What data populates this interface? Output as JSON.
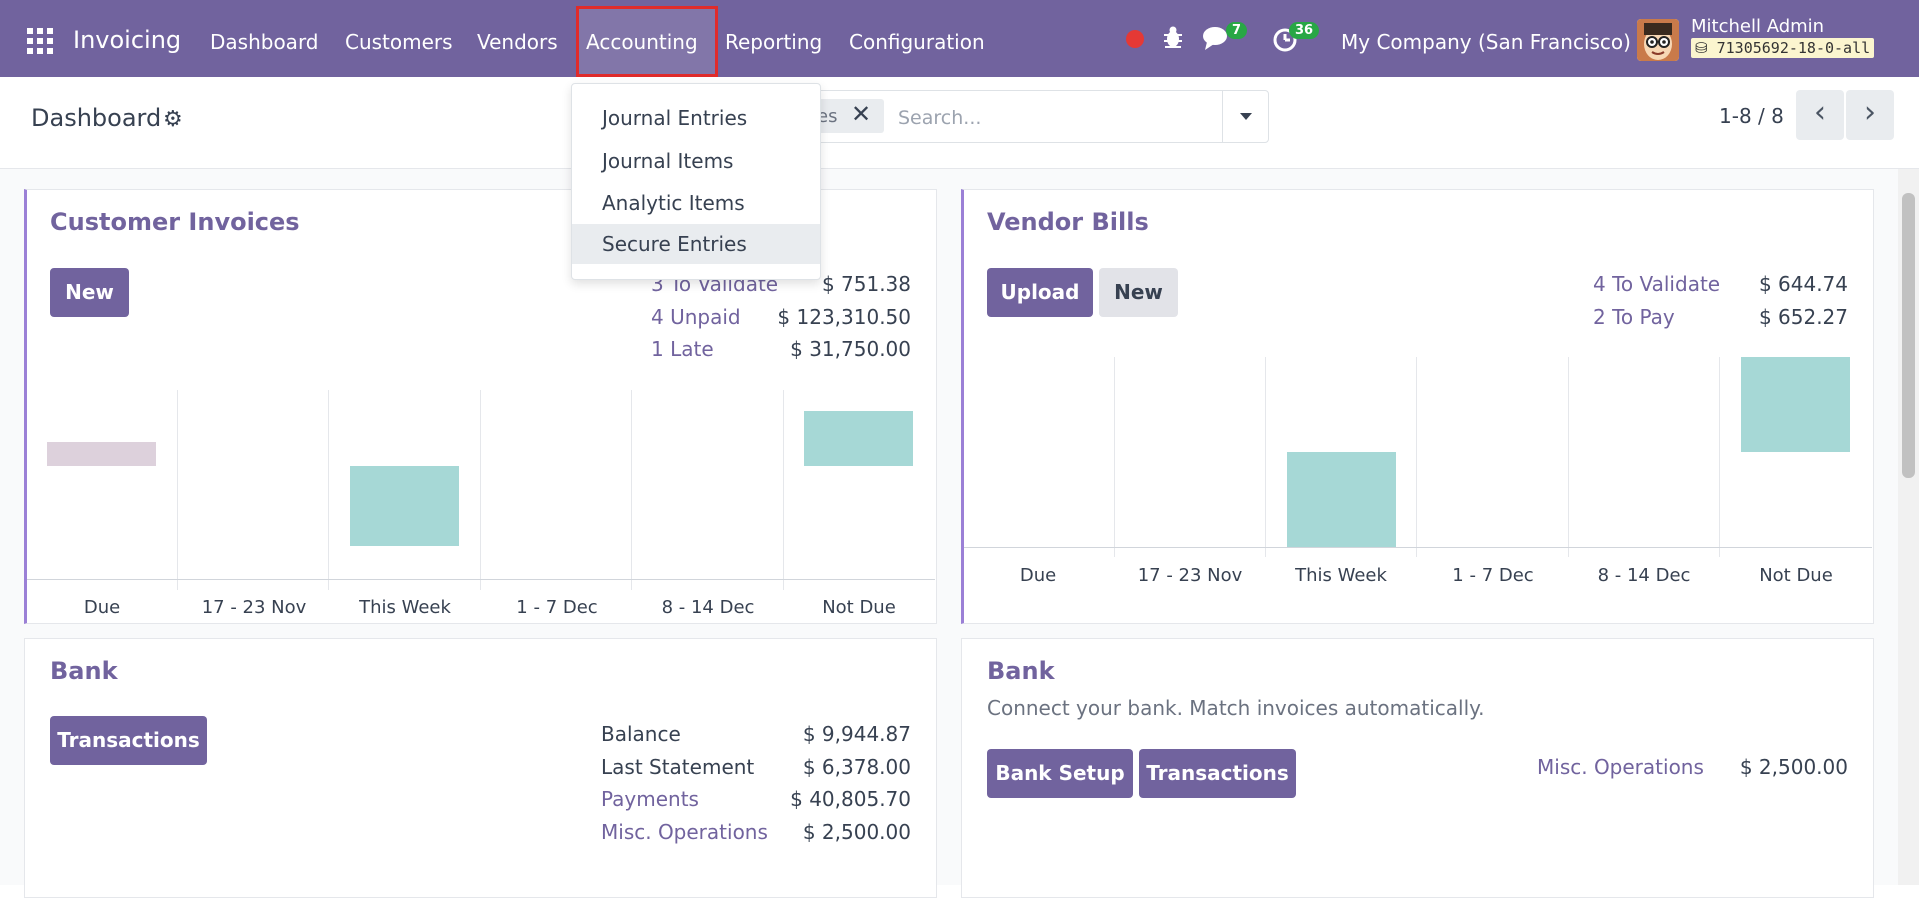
{
  "navbar": {
    "brand": "Invoicing",
    "menus": [
      "Dashboard",
      "Customers",
      "Vendors",
      "Accounting",
      "Reporting",
      "Configuration"
    ],
    "chat_badge": "7",
    "activity_badge": "36",
    "company": "My Company (San Francisco)",
    "user_name": "Mitchell Admin",
    "db_name": "71305692-18-0-all"
  },
  "control": {
    "title": "Dashboard",
    "facet_label": "es",
    "search_placeholder": "Search...",
    "pager": "1-8 / 8"
  },
  "dropdown": {
    "items": [
      "Journal Entries",
      "Journal Items",
      "Analytic Items",
      "Secure Entries"
    ]
  },
  "customer_invoices": {
    "title": "Customer Invoices",
    "new_label": "New",
    "stats": [
      {
        "label": "3 To Validate",
        "value": "$ 751.38"
      },
      {
        "label": "4 Unpaid",
        "value": "$ 123,310.50"
      },
      {
        "label": "1 Late",
        "value": "$ 31,750.00"
      }
    ],
    "chart_labels": [
      "Due",
      "17 - 23 Nov",
      "This Week",
      "1 - 7 Dec",
      "8 - 14 Dec",
      "Not Due"
    ]
  },
  "vendor_bills": {
    "title": "Vendor Bills",
    "upload_label": "Upload",
    "new_label": "New",
    "stats": [
      {
        "label": "4 To Validate",
        "value": "$ 644.74"
      },
      {
        "label": "2 To Pay",
        "value": "$ 652.27"
      }
    ],
    "chart_labels": [
      "Due",
      "17 - 23 Nov",
      "This Week",
      "1 - 7 Dec",
      "8 - 14 Dec",
      "Not Due"
    ]
  },
  "bank1": {
    "title": "Bank",
    "transactions_label": "Transactions",
    "stats": [
      {
        "label": "Balance",
        "value": "$ 9,944.87"
      },
      {
        "label": "Last Statement",
        "value": "$ 6,378.00"
      },
      {
        "label": "Payments",
        "value": "$ 40,805.70"
      },
      {
        "label": "Misc. Operations",
        "value": "$ 2,500.00"
      }
    ]
  },
  "bank2": {
    "title": "Bank",
    "subtitle": "Connect your bank. Match invoices automatically.",
    "setup_label": "Bank Setup",
    "transactions_label": "Transactions",
    "misc_label": "Misc. Operations",
    "misc_value": "$ 2,500.00"
  },
  "colors": {
    "brand": "#71639e",
    "bar_teal": "#a6d8d6",
    "bar_due": "#ddd1dc",
    "highlight": "#e02b2b"
  }
}
